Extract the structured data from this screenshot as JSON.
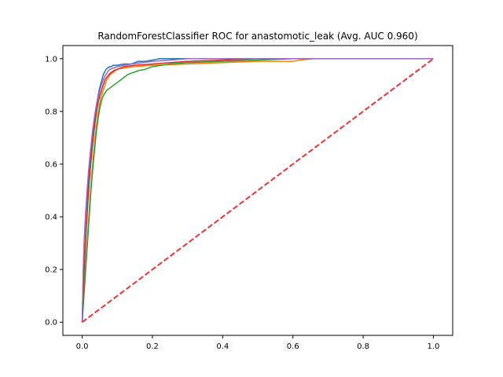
{
  "chart_data": {
    "type": "line",
    "title": "RandomForestClassifier ROC for anastomotic_leak (Avg. AUC 0.960)",
    "xlabel": "",
    "ylabel": "",
    "xlim": [
      -0.055,
      1.055
    ],
    "ylim": [
      -0.05,
      1.05
    ],
    "xticks": [
      0.0,
      0.2,
      0.4,
      0.6,
      0.8,
      1.0
    ],
    "yticks": [
      0.0,
      0.2,
      0.4,
      0.6,
      0.8,
      1.0
    ],
    "xtick_labels": [
      "0.0",
      "0.2",
      "0.4",
      "0.6",
      "0.8",
      "1.0"
    ],
    "ytick_labels": [
      "0.0",
      "0.2",
      "0.4",
      "0.6",
      "0.8",
      "1.0"
    ],
    "grid": false,
    "legend": "none",
    "series": [
      {
        "color": "#1f77b4",
        "x": [
          0,
          0.003,
          0.006,
          0.01,
          0.013,
          0.017,
          0.02,
          0.024,
          0.028,
          0.032,
          0.036,
          0.04,
          0.044,
          0.048,
          0.052,
          0.056,
          0.06,
          0.064,
          0.068,
          0.073,
          0.078,
          0.083,
          0.088,
          0.095,
          0.1,
          0.11,
          0.12,
          0.14,
          0.16,
          0.18,
          0.2,
          0.22,
          0.25,
          0.3,
          0.4,
          0.5,
          0.6,
          0.8,
          1.0
        ],
        "y": [
          0,
          0.18,
          0.3,
          0.4,
          0.46,
          0.52,
          0.58,
          0.64,
          0.69,
          0.74,
          0.78,
          0.82,
          0.85,
          0.88,
          0.9,
          0.92,
          0.94,
          0.95,
          0.96,
          0.965,
          0.97,
          0.97,
          0.975,
          0.975,
          0.975,
          0.978,
          0.98,
          0.98,
          0.99,
          0.99,
          0.995,
          1.0,
          1.0,
          1.0,
          1.0,
          1.0,
          1.0,
          1.0,
          1.0
        ]
      },
      {
        "color": "#ff7f0e",
        "x": [
          0,
          0.005,
          0.01,
          0.015,
          0.02,
          0.025,
          0.03,
          0.035,
          0.04,
          0.045,
          0.05,
          0.055,
          0.06,
          0.065,
          0.07,
          0.08,
          0.09,
          0.1,
          0.12,
          0.15,
          0.2,
          0.3,
          0.4,
          0.5,
          0.6,
          0.62,
          0.66,
          0.7,
          0.8,
          1.0
        ],
        "y": [
          0,
          0.12,
          0.22,
          0.32,
          0.42,
          0.52,
          0.6,
          0.68,
          0.74,
          0.79,
          0.83,
          0.86,
          0.88,
          0.9,
          0.92,
          0.94,
          0.95,
          0.96,
          0.965,
          0.97,
          0.975,
          0.98,
          0.985,
          0.99,
          0.99,
          0.995,
          1.0,
          1.0,
          1.0,
          1.0
        ]
      },
      {
        "color": "#2ca02c",
        "x": [
          0,
          0.005,
          0.01,
          0.015,
          0.02,
          0.025,
          0.03,
          0.035,
          0.04,
          0.045,
          0.05,
          0.055,
          0.06,
          0.07,
          0.08,
          0.09,
          0.1,
          0.11,
          0.12,
          0.13,
          0.14,
          0.15,
          0.16,
          0.18,
          0.2,
          0.25,
          0.3,
          0.4,
          0.5,
          0.6,
          0.8,
          1.0
        ],
        "y": [
          0,
          0.1,
          0.2,
          0.3,
          0.4,
          0.5,
          0.58,
          0.65,
          0.72,
          0.77,
          0.81,
          0.84,
          0.86,
          0.88,
          0.89,
          0.9,
          0.91,
          0.92,
          0.93,
          0.94,
          0.945,
          0.95,
          0.955,
          0.96,
          0.97,
          0.98,
          0.985,
          0.99,
          0.995,
          1.0,
          1.0,
          1.0
        ]
      },
      {
        "color": "#d62728",
        "x": [
          0,
          0.004,
          0.008,
          0.012,
          0.016,
          0.02,
          0.025,
          0.03,
          0.035,
          0.04,
          0.045,
          0.05,
          0.055,
          0.06,
          0.065,
          0.07,
          0.08,
          0.09,
          0.1,
          0.12,
          0.15,
          0.2,
          0.25,
          0.3,
          0.4,
          0.5,
          0.6,
          0.8,
          1.0
        ],
        "y": [
          0,
          0.15,
          0.26,
          0.36,
          0.45,
          0.53,
          0.61,
          0.68,
          0.74,
          0.79,
          0.83,
          0.86,
          0.88,
          0.9,
          0.92,
          0.93,
          0.945,
          0.955,
          0.96,
          0.97,
          0.975,
          0.98,
          0.985,
          0.99,
          0.995,
          1.0,
          1.0,
          1.0,
          1.0
        ]
      },
      {
        "color": "#9467bd",
        "x": [
          0,
          0.003,
          0.006,
          0.01,
          0.014,
          0.018,
          0.022,
          0.026,
          0.03,
          0.035,
          0.04,
          0.045,
          0.05,
          0.055,
          0.06,
          0.065,
          0.07,
          0.075,
          0.08,
          0.09,
          0.1,
          0.12,
          0.14,
          0.17,
          0.2,
          0.25,
          0.3,
          0.4,
          0.5,
          0.6,
          0.8,
          1.0
        ],
        "y": [
          0,
          0.2,
          0.32,
          0.42,
          0.5,
          0.57,
          0.63,
          0.68,
          0.73,
          0.78,
          0.82,
          0.85,
          0.88,
          0.9,
          0.92,
          0.935,
          0.945,
          0.955,
          0.96,
          0.965,
          0.97,
          0.975,
          0.98,
          0.985,
          0.99,
          0.995,
          1.0,
          1.0,
          1.0,
          1.0,
          1.0,
          1.0
        ]
      }
    ],
    "reference_line": {
      "color": "#ee3333",
      "style": "dashed",
      "x": [
        0,
        1
      ],
      "y": [
        0,
        1
      ]
    }
  }
}
